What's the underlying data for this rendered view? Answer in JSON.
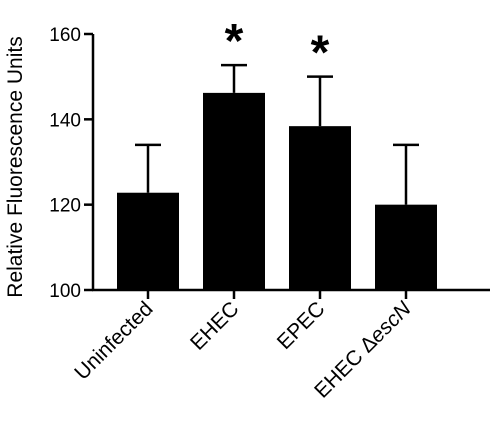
{
  "chart_data": {
    "type": "bar",
    "title": "",
    "xlabel": "",
    "ylabel": "Relative Fluorescence Units",
    "ylim": [
      100,
      160
    ],
    "yticks": [
      "100",
      "120",
      "140",
      "160"
    ],
    "grid": false,
    "categories": [
      {
        "plain": "Uninfected",
        "italic": ""
      },
      {
        "plain": "EHEC",
        "italic": ""
      },
      {
        "plain": "EPEC",
        "italic": ""
      },
      {
        "plain": "EHEC Δ",
        "italic": "escN"
      }
    ],
    "values": [
      122.8,
      146.2,
      138.4,
      120.0
    ],
    "error_upper": [
      11.2,
      6.5,
      11.6,
      14.0
    ],
    "significance": [
      "",
      "*",
      "*",
      ""
    ],
    "bar_color": "#000000"
  }
}
